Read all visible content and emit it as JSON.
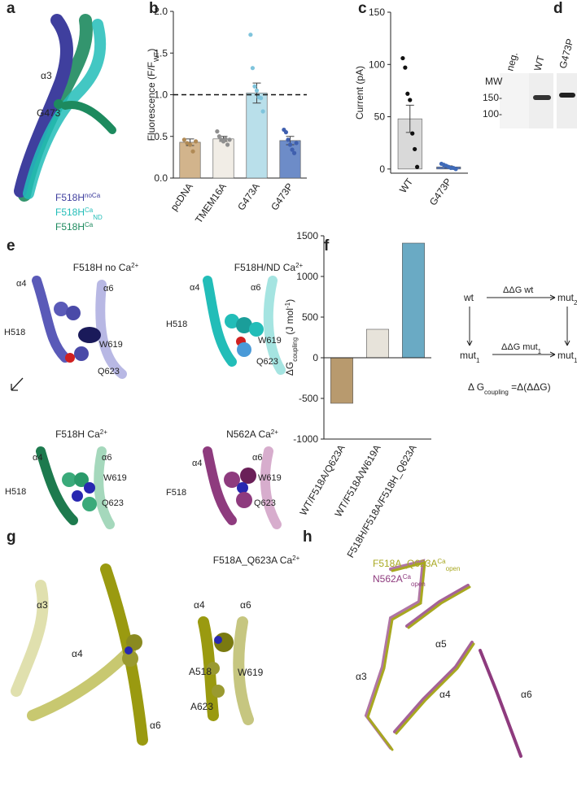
{
  "panel_labels": [
    "a",
    "b",
    "c",
    "d",
    "e",
    "f",
    "g",
    "h"
  ],
  "panel_a": {
    "helix": "α3",
    "residue": "G473",
    "legend": [
      [
        {
          "t": "F518H"
        },
        {
          "t": "noCa",
          "sup": true
        }
      ],
      [
        {
          "t": "F518H"
        },
        {
          "t": "Ca",
          "sup": true
        },
        {
          "t": "ND",
          "sub": true
        }
      ],
      [
        {
          "t": "F518H"
        },
        {
          "t": "Ca",
          "sup": true
        }
      ]
    ],
    "legend_colors": [
      "#3f3f9e",
      "#22bdb8",
      "#1d8a5e"
    ]
  },
  "chart_data": [
    {
      "type": "bar",
      "ylabel": [
        {
          "t": "Fluorescence  (F/F"
        },
        {
          "t": "WT",
          "sub": true
        },
        {
          "t": ")"
        }
      ],
      "categories": [
        "pcDNA",
        "TMEM16A",
        "G473A",
        "G473P"
      ],
      "values": [
        0.43,
        0.47,
        1.02,
        0.45
      ],
      "errors": [
        0.04,
        0.03,
        0.12,
        0.05
      ],
      "points": [
        [
          0.46,
          0.42,
          0.4,
          0.32,
          0.44
        ],
        [
          0.56,
          0.5,
          0.46,
          0.44,
          0.47,
          0.4,
          0.46
        ],
        [
          1.72,
          1.32,
          1.1,
          1.05,
          0.97,
          0.96,
          0.8
        ],
        [
          0.58,
          0.55,
          0.46,
          0.4,
          0.34,
          0.3,
          0.42
        ]
      ],
      "colors": [
        "#d2b48c",
        "#f1ede6",
        "#b9dfea",
        "#6d8cc8"
      ],
      "point_colors": [
        "#b08a55",
        "#8f8f8f",
        "#7fc4dc",
        "#3f5fae"
      ],
      "ylim": [
        0,
        2.0
      ],
      "yticks": [
        {
          "value": 0,
          "label": "0.0"
        },
        {
          "value": 0.5,
          "label": "0.5"
        },
        {
          "value": 1.0,
          "label": "1.0"
        },
        {
          "value": 1.5,
          "label": "1.5"
        },
        {
          "value": 2.0,
          "label": "2.0"
        }
      ],
      "reference_line": 1.0
    },
    {
      "type": "bar",
      "ylabel": [
        {
          "t": "Current (pA)"
        }
      ],
      "categories": [
        "WT",
        "G473P"
      ],
      "values": [
        48,
        2
      ],
      "errors": [
        13,
        1
      ],
      "points": [
        [
          106,
          97,
          72,
          66,
          34,
          19,
          2
        ],
        [
          5,
          4,
          3,
          2,
          1,
          1,
          0
        ]
      ],
      "colors": [
        "#d9d9d9",
        "#5b7cc0"
      ],
      "point_colors": [
        "#111111",
        "#3f6ab8"
      ],
      "ylim": [
        -4,
        150
      ],
      "yticks": [
        0,
        50,
        100,
        150
      ]
    },
    {
      "type": "bar",
      "ylabel": [
        {
          "t": "ΔG"
        },
        {
          "t": "coupling",
          "sub": true
        },
        {
          "t": " (J mol"
        },
        {
          "t": "-1",
          "sup": true
        },
        {
          "t": ")"
        }
      ],
      "categories": [
        "WT/F518A/Q623A",
        "WT/F518A/W619A",
        "F518H/F518A/F518H_Q623A"
      ],
      "values": [
        -560,
        350,
        1410
      ],
      "colors": [
        "#b89a6e",
        "#e7e3da",
        "#6aaac4"
      ],
      "ylim": [
        -1000,
        1500
      ],
      "yticks": [
        -1000,
        -500,
        0,
        500,
        1000,
        1500
      ],
      "zero_line": true
    }
  ],
  "panel_d": {
    "mw": "MW",
    "markers": [
      "150-",
      "100-"
    ],
    "lanes": [
      "neg.",
      "WT",
      "G473P"
    ]
  },
  "panel_e": {
    "titles": [
      [
        {
          "t": "F518H no Ca"
        },
        {
          "t": "2+",
          "sup": true
        }
      ],
      [
        {
          "t": "F518H/ND Ca"
        },
        {
          "t": "2+",
          "sup": true
        }
      ],
      [
        {
          "t": "F518H Ca"
        },
        {
          "t": "2+",
          "sup": true
        }
      ],
      [
        {
          "t": "N562A Ca"
        },
        {
          "t": "2+",
          "sup": true
        }
      ]
    ],
    "labels": [
      "α4",
      "H518",
      "W619",
      "Q623",
      "α6",
      "α4",
      "α6",
      "H518",
      "W619",
      "Q623",
      "α4",
      "α6",
      "H518",
      "W619",
      "Q623",
      "α4",
      "α6",
      "F518",
      "W619",
      "Q623"
    ]
  },
  "panel_f_scheme": {
    "wt": "wt",
    "ddg_wt": "ΔΔG wt",
    "mut2": [
      {
        "t": "mut"
      },
      {
        "t": "2",
        "sub": true
      }
    ],
    "mut1": [
      {
        "t": "mut"
      },
      {
        "t": "1",
        "sub": true
      }
    ],
    "ddg_mut1": [
      {
        "t": "ΔΔG mut"
      },
      {
        "t": "1",
        "sub": true
      }
    ],
    "mut12": [
      {
        "t": "mut"
      },
      {
        "t": "1+2",
        "sub": true
      }
    ],
    "equation": [
      {
        "t": "Δ G"
      },
      {
        "t": "coupling",
        "sub": true
      },
      {
        "t": " =Δ(ΔΔG)"
      }
    ]
  },
  "panel_g": {
    "title": [
      {
        "t": "F518A_Q623A Ca"
      },
      {
        "t": "2+",
        "sup": true
      }
    ],
    "labels": [
      "α3",
      "α4",
      "α6",
      "α4",
      "α6",
      "A518",
      "W619",
      "A623"
    ]
  },
  "panel_h": {
    "legend": [
      [
        {
          "t": "F518A_Q623A"
        },
        {
          "t": "Ca",
          "sup": true
        },
        {
          "t": "open",
          "sub": true
        }
      ],
      [
        {
          "t": "N562A"
        },
        {
          "t": "Ca",
          "sup": true
        },
        {
          "t": "open",
          "sub": true
        }
      ]
    ],
    "legend_colors": [
      "#a8a820",
      "#8e3b7e"
    ],
    "labels": [
      "α3",
      "α5",
      "α4",
      "α6"
    ]
  }
}
